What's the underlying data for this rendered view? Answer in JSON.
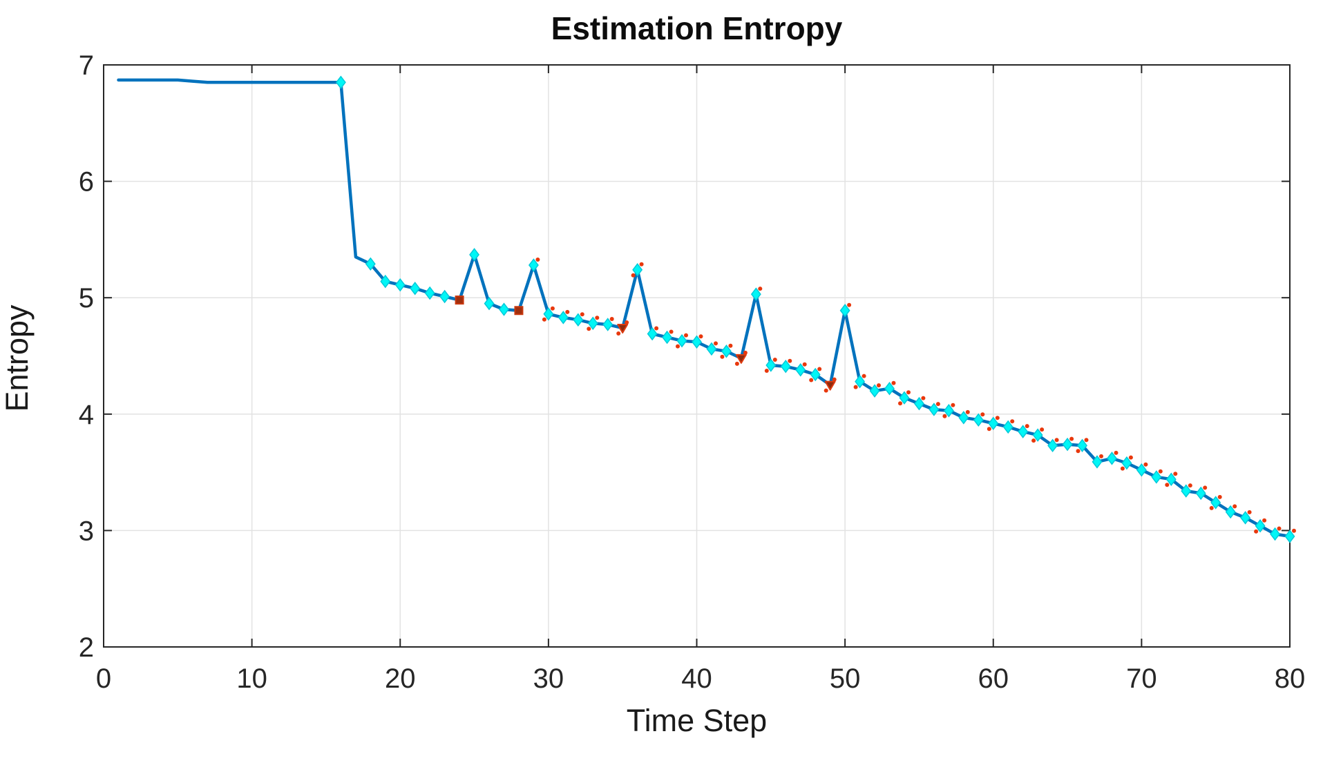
{
  "figure": {
    "title": "Estimation Entropy",
    "xlabel": "Time Step",
    "ylabel": "Entropy"
  },
  "chart_data": {
    "type": "line",
    "title": "Estimation Entropy",
    "xlabel": "Time Step",
    "ylabel": "Entropy",
    "xlim": [
      0,
      80
    ],
    "ylim": [
      2,
      7
    ],
    "xticks": [
      0,
      10,
      20,
      30,
      40,
      50,
      60,
      70,
      80
    ],
    "yticks": [
      2,
      3,
      4,
      5,
      6,
      7
    ],
    "grid": true,
    "legend_position": "none",
    "colors": {
      "line": "#0072BD",
      "diamond_fill": "#00F6F6",
      "diamond_edge": "#00C9D9",
      "square_fill": "#9E2F0F",
      "square_edge": "#C9380F",
      "triangle_fill": "#8E2A0D",
      "triangle_edge": "#DC3A10",
      "red_dot": "#E8380D",
      "grid_color": "#E2E2E2",
      "axis_color": "#262626"
    },
    "marker_key": {
      "d": "cyan-diamond",
      "s": "dark-red-square",
      "v": "dark-red-triangle-down",
      "": "none"
    },
    "red_dot_overlay_from_x": 29,
    "series": [
      {
        "name": "estimation-entropy",
        "points": [
          [
            1,
            6.87,
            ""
          ],
          [
            2,
            6.87,
            ""
          ],
          [
            3,
            6.87,
            ""
          ],
          [
            4,
            6.87,
            ""
          ],
          [
            5,
            6.87,
            ""
          ],
          [
            6,
            6.86,
            ""
          ],
          [
            7,
            6.85,
            ""
          ],
          [
            8,
            6.85,
            ""
          ],
          [
            9,
            6.85,
            ""
          ],
          [
            10,
            6.85,
            ""
          ],
          [
            11,
            6.85,
            ""
          ],
          [
            12,
            6.85,
            ""
          ],
          [
            13,
            6.85,
            ""
          ],
          [
            14,
            6.85,
            ""
          ],
          [
            15,
            6.85,
            ""
          ],
          [
            16,
            6.85,
            "d"
          ],
          [
            17,
            5.35,
            ""
          ],
          [
            18,
            5.29,
            "d"
          ],
          [
            19,
            5.14,
            "d"
          ],
          [
            20,
            5.11,
            "d"
          ],
          [
            21,
            5.08,
            "d"
          ],
          [
            22,
            5.04,
            "d"
          ],
          [
            23,
            5.01,
            "d"
          ],
          [
            24,
            4.98,
            "s"
          ],
          [
            25,
            5.37,
            "d"
          ],
          [
            26,
            4.95,
            "d"
          ],
          [
            27,
            4.9,
            "d"
          ],
          [
            28,
            4.89,
            "s"
          ],
          [
            29,
            5.28,
            "d"
          ],
          [
            30,
            4.86,
            "d"
          ],
          [
            31,
            4.83,
            "d"
          ],
          [
            32,
            4.81,
            "d"
          ],
          [
            33,
            4.78,
            "d"
          ],
          [
            34,
            4.77,
            "d"
          ],
          [
            35,
            4.74,
            "v"
          ],
          [
            36,
            5.24,
            "d"
          ],
          [
            37,
            4.69,
            "d"
          ],
          [
            38,
            4.66,
            "d"
          ],
          [
            39,
            4.63,
            "d"
          ],
          [
            40,
            4.62,
            "d"
          ],
          [
            41,
            4.56,
            "d"
          ],
          [
            42,
            4.54,
            "d"
          ],
          [
            43,
            4.48,
            "v"
          ],
          [
            44,
            5.03,
            "d"
          ],
          [
            45,
            4.42,
            "d"
          ],
          [
            46,
            4.41,
            "d"
          ],
          [
            47,
            4.38,
            "d"
          ],
          [
            48,
            4.34,
            "d"
          ],
          [
            49,
            4.25,
            "v"
          ],
          [
            50,
            4.89,
            "d"
          ],
          [
            51,
            4.28,
            "d"
          ],
          [
            52,
            4.2,
            "d"
          ],
          [
            53,
            4.22,
            "d"
          ],
          [
            54,
            4.14,
            "d"
          ],
          [
            55,
            4.09,
            "d"
          ],
          [
            56,
            4.04,
            "d"
          ],
          [
            57,
            4.03,
            "d"
          ],
          [
            58,
            3.97,
            "d"
          ],
          [
            59,
            3.95,
            "d"
          ],
          [
            60,
            3.92,
            "d"
          ],
          [
            61,
            3.89,
            "d"
          ],
          [
            62,
            3.85,
            "d"
          ],
          [
            63,
            3.82,
            "d"
          ],
          [
            64,
            3.73,
            "d"
          ],
          [
            65,
            3.74,
            "d"
          ],
          [
            66,
            3.73,
            "d"
          ],
          [
            67,
            3.59,
            "d"
          ],
          [
            68,
            3.62,
            "d"
          ],
          [
            69,
            3.58,
            "d"
          ],
          [
            70,
            3.52,
            "d"
          ],
          [
            71,
            3.46,
            "d"
          ],
          [
            72,
            3.44,
            "d"
          ],
          [
            73,
            3.34,
            "d"
          ],
          [
            74,
            3.32,
            "d"
          ],
          [
            75,
            3.24,
            "d"
          ],
          [
            76,
            3.16,
            "d"
          ],
          [
            77,
            3.11,
            "d"
          ],
          [
            78,
            3.04,
            "d"
          ],
          [
            79,
            2.97,
            "d"
          ],
          [
            80,
            2.95,
            "d"
          ]
        ]
      }
    ]
  }
}
